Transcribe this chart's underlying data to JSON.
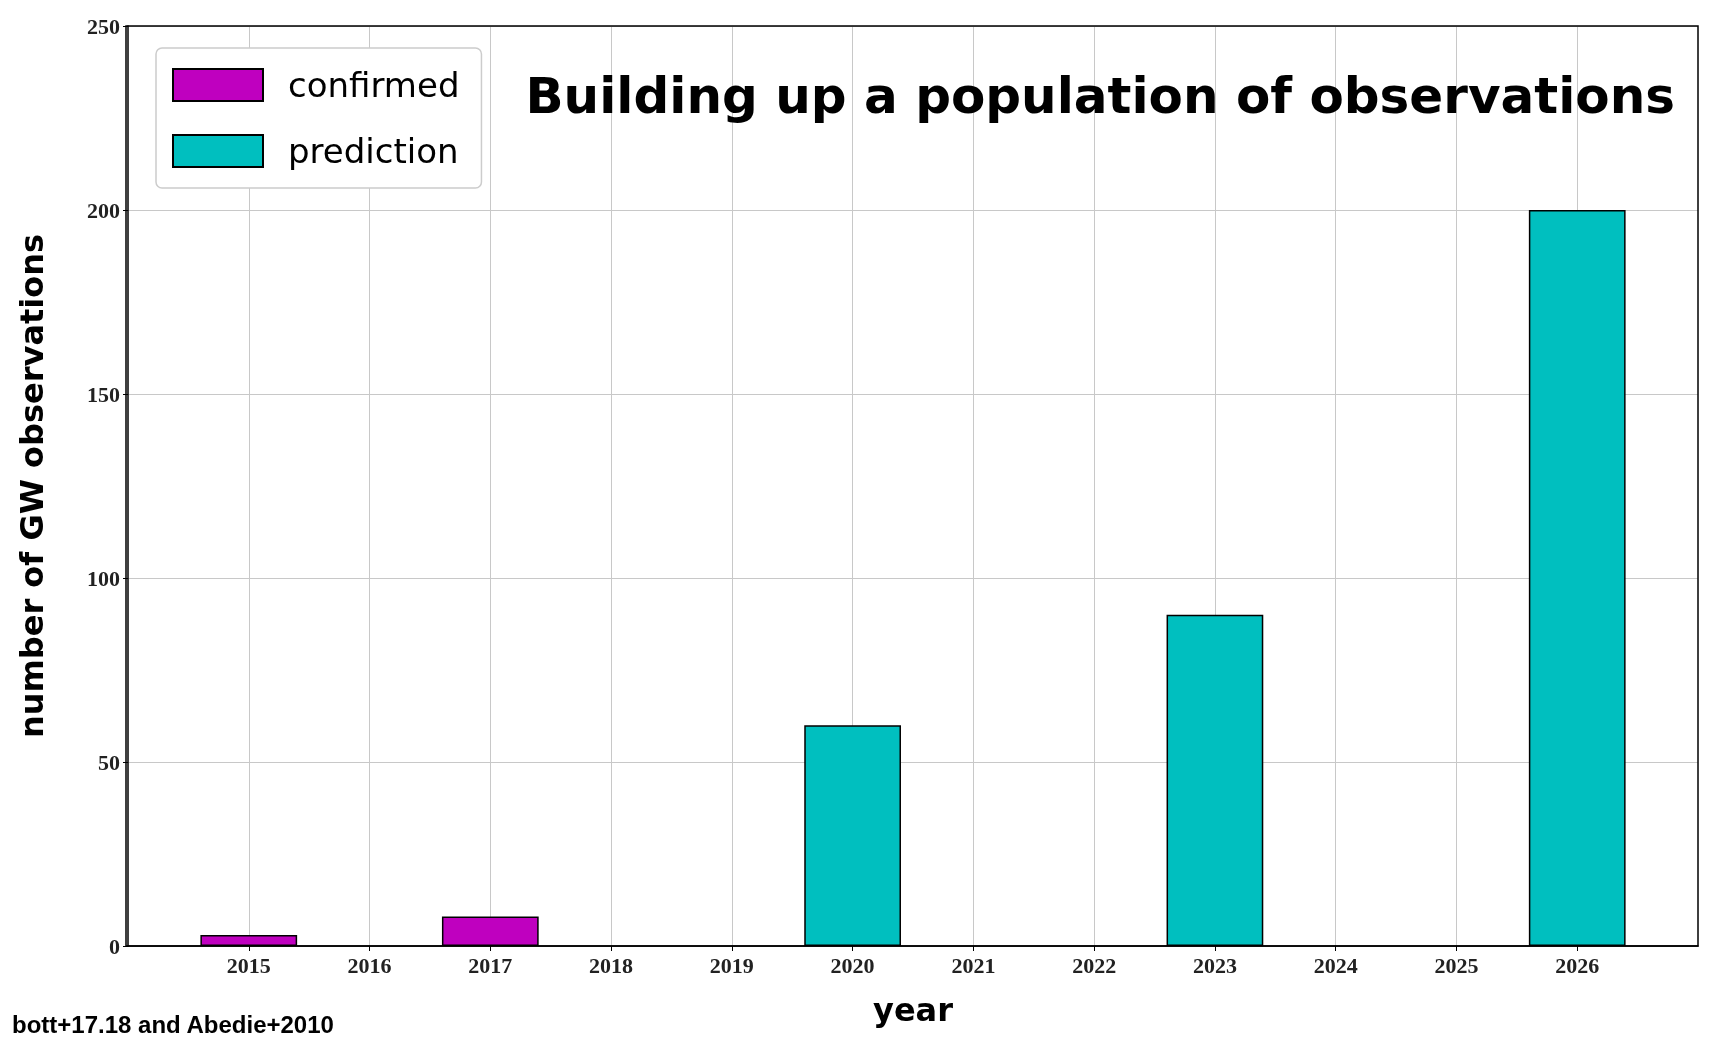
{
  "chart_data": {
    "type": "bar",
    "title": "Building up a population of observations",
    "xlabel": "year",
    "ylabel": "number of GW observations",
    "series": [
      {
        "name": "confirmed",
        "color": "#bf00bf",
        "x": [
          2015,
          2017
        ],
        "values": [
          3,
          8
        ]
      },
      {
        "name": "prediction",
        "color": "#00bfbf",
        "x": [
          2020,
          2023,
          2026
        ],
        "values": [
          60,
          90,
          200
        ]
      }
    ],
    "xlim": [
      2014,
      2027
    ],
    "xticks": [
      2015,
      2016,
      2017,
      2018,
      2019,
      2020,
      2021,
      2022,
      2023,
      2024,
      2025,
      2026
    ],
    "ylim": [
      0,
      250
    ],
    "yticks": [
      0,
      50,
      100,
      150,
      200,
      250
    ],
    "grid": true,
    "legend": "top left",
    "annotations": [
      "bott+17.18 and Abedie+2010"
    ]
  }
}
